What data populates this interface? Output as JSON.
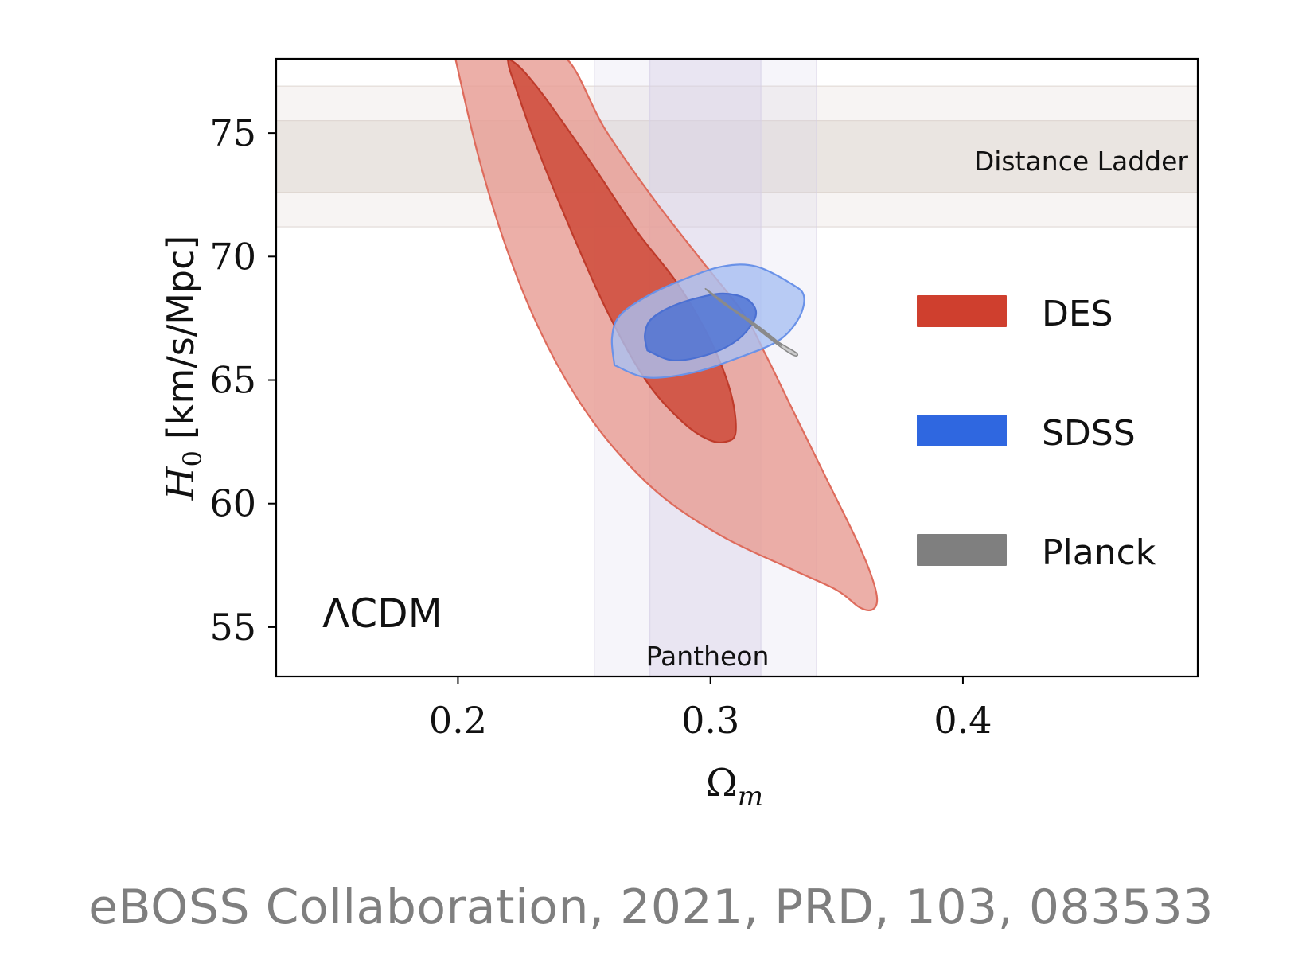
{
  "chart_data": {
    "type": "contour",
    "xlabel": "Ω",
    "xlabel_sub": "m",
    "ylabel_symbol": "H",
    "ylabel_sub": "0",
    "ylabel_units": "[km/s/Mpc]",
    "xlim": [
      0.128,
      0.493
    ],
    "ylim": [
      53.0,
      78.0
    ],
    "xticks": [
      0.2,
      0.3,
      0.4
    ],
    "xtick_labels": [
      "0.2",
      "0.3",
      "0.4"
    ],
    "yticks": [
      55,
      60,
      65,
      70,
      75
    ],
    "ytick_labels": [
      "55",
      "60",
      "65",
      "70",
      "75"
    ],
    "model_label": "ΛCDM",
    "bands": [
      {
        "name": "Distance Ladder",
        "orientation": "horizontal",
        "inner": [
          72.6,
          75.5
        ],
        "outer": [
          71.2,
          76.9
        ],
        "color": "#d9cfc9"
      },
      {
        "name": "Pantheon",
        "orientation": "vertical",
        "inner": [
          0.276,
          0.32
        ],
        "outer": [
          0.254,
          0.342
        ],
        "color": "#d6d0e6"
      }
    ],
    "legend": [
      {
        "name": "DES",
        "color": "#cf3f2e"
      },
      {
        "name": "SDSS",
        "color": "#2f67e0"
      },
      {
        "name": "Planck",
        "color": "#7f7f7f"
      }
    ],
    "contours": [
      {
        "series": "DES",
        "level": "2-sigma",
        "fill": "#e89e95",
        "edge": "#de6b5c",
        "points": [
          [
            0.199,
            78.0
          ],
          [
            0.221,
            78.0
          ],
          [
            0.227,
            78.0
          ],
          [
            0.243,
            78.0
          ],
          [
            0.258,
            75.2
          ],
          [
            0.277,
            72.4
          ],
          [
            0.296,
            69.9
          ],
          [
            0.313,
            67.7
          ],
          [
            0.322,
            66.0
          ],
          [
            0.333,
            63.7
          ],
          [
            0.346,
            61.0
          ],
          [
            0.358,
            58.5
          ],
          [
            0.364,
            57.0
          ],
          [
            0.366,
            56.1
          ],
          [
            0.364,
            55.7
          ],
          [
            0.359,
            55.8
          ],
          [
            0.35,
            56.5
          ],
          [
            0.333,
            57.3
          ],
          [
            0.306,
            58.6
          ],
          [
            0.282,
            60.2
          ],
          [
            0.263,
            62.1
          ],
          [
            0.247,
            64.3
          ],
          [
            0.232,
            67.1
          ],
          [
            0.219,
            70.4
          ],
          [
            0.208,
            74.1
          ],
          [
            0.199,
            78.0
          ]
        ]
      },
      {
        "series": "DES",
        "level": "1-sigma",
        "fill": "#cd4736",
        "edge": "#bf3b2b",
        "points": [
          [
            0.211,
            78.0
          ],
          [
            0.22,
            78.0
          ],
          [
            0.231,
            76.9
          ],
          [
            0.252,
            73.9
          ],
          [
            0.271,
            71.0
          ],
          [
            0.287,
            68.9
          ],
          [
            0.3,
            66.6
          ],
          [
            0.308,
            64.5
          ],
          [
            0.31,
            62.9
          ],
          [
            0.306,
            62.5
          ],
          [
            0.299,
            62.6
          ],
          [
            0.289,
            63.3
          ],
          [
            0.275,
            64.9
          ],
          [
            0.26,
            67.6
          ],
          [
            0.245,
            71.0
          ],
          [
            0.231,
            74.5
          ],
          [
            0.221,
            77.4
          ],
          [
            0.219,
            78.0
          ],
          [
            0.211,
            78.0
          ]
        ]
      },
      {
        "series": "SDSS",
        "level": "2-sigma",
        "fill": "#a9c0f2",
        "edge": "#6a92e8",
        "points": [
          [
            0.262,
            65.6
          ],
          [
            0.275,
            65.1
          ],
          [
            0.293,
            65.3
          ],
          [
            0.311,
            65.9
          ],
          [
            0.327,
            66.6
          ],
          [
            0.335,
            67.5
          ],
          [
            0.337,
            68.4
          ],
          [
            0.332,
            68.9
          ],
          [
            0.318,
            69.6
          ],
          [
            0.305,
            69.6
          ],
          [
            0.29,
            69.1
          ],
          [
            0.275,
            68.4
          ],
          [
            0.264,
            67.6
          ],
          [
            0.261,
            66.7
          ],
          [
            0.262,
            65.6
          ]
        ]
      },
      {
        "series": "SDSS",
        "level": "1-sigma",
        "fill": "#4b70d2",
        "edge": "#4b70d2",
        "points": [
          [
            0.275,
            66.2
          ],
          [
            0.285,
            65.8
          ],
          [
            0.298,
            66.0
          ],
          [
            0.309,
            66.5
          ],
          [
            0.316,
            67.2
          ],
          [
            0.318,
            67.8
          ],
          [
            0.314,
            68.3
          ],
          [
            0.305,
            68.5
          ],
          [
            0.294,
            68.3
          ],
          [
            0.283,
            67.9
          ],
          [
            0.276,
            67.4
          ],
          [
            0.274,
            66.8
          ],
          [
            0.275,
            66.2
          ]
        ]
      },
      {
        "series": "Planck",
        "level": "2-sigma",
        "fill": "#c4c4c4",
        "edge": "#8a8a8a",
        "points": [
          [
            0.298,
            68.7
          ],
          [
            0.306,
            68.1
          ],
          [
            0.317,
            67.2
          ],
          [
            0.327,
            66.4
          ],
          [
            0.333,
            66.0
          ],
          [
            0.334,
            66.1
          ],
          [
            0.326,
            66.6
          ],
          [
            0.315,
            67.4
          ],
          [
            0.305,
            68.1
          ],
          [
            0.299,
            68.6
          ],
          [
            0.298,
            68.7
          ]
        ]
      },
      {
        "series": "Planck",
        "level": "1-sigma",
        "fill": "#8a8a8a",
        "edge": "#8a8a8a",
        "points": [
          [
            0.303,
            68.3
          ],
          [
            0.312,
            67.6
          ],
          [
            0.321,
            66.9
          ],
          [
            0.328,
            66.4
          ],
          [
            0.325,
            66.7
          ],
          [
            0.316,
            67.4
          ],
          [
            0.307,
            68.0
          ],
          [
            0.303,
            68.3
          ]
        ]
      }
    ]
  },
  "citation": "eBOSS Collaboration, 2021, PRD, 103, 083533"
}
